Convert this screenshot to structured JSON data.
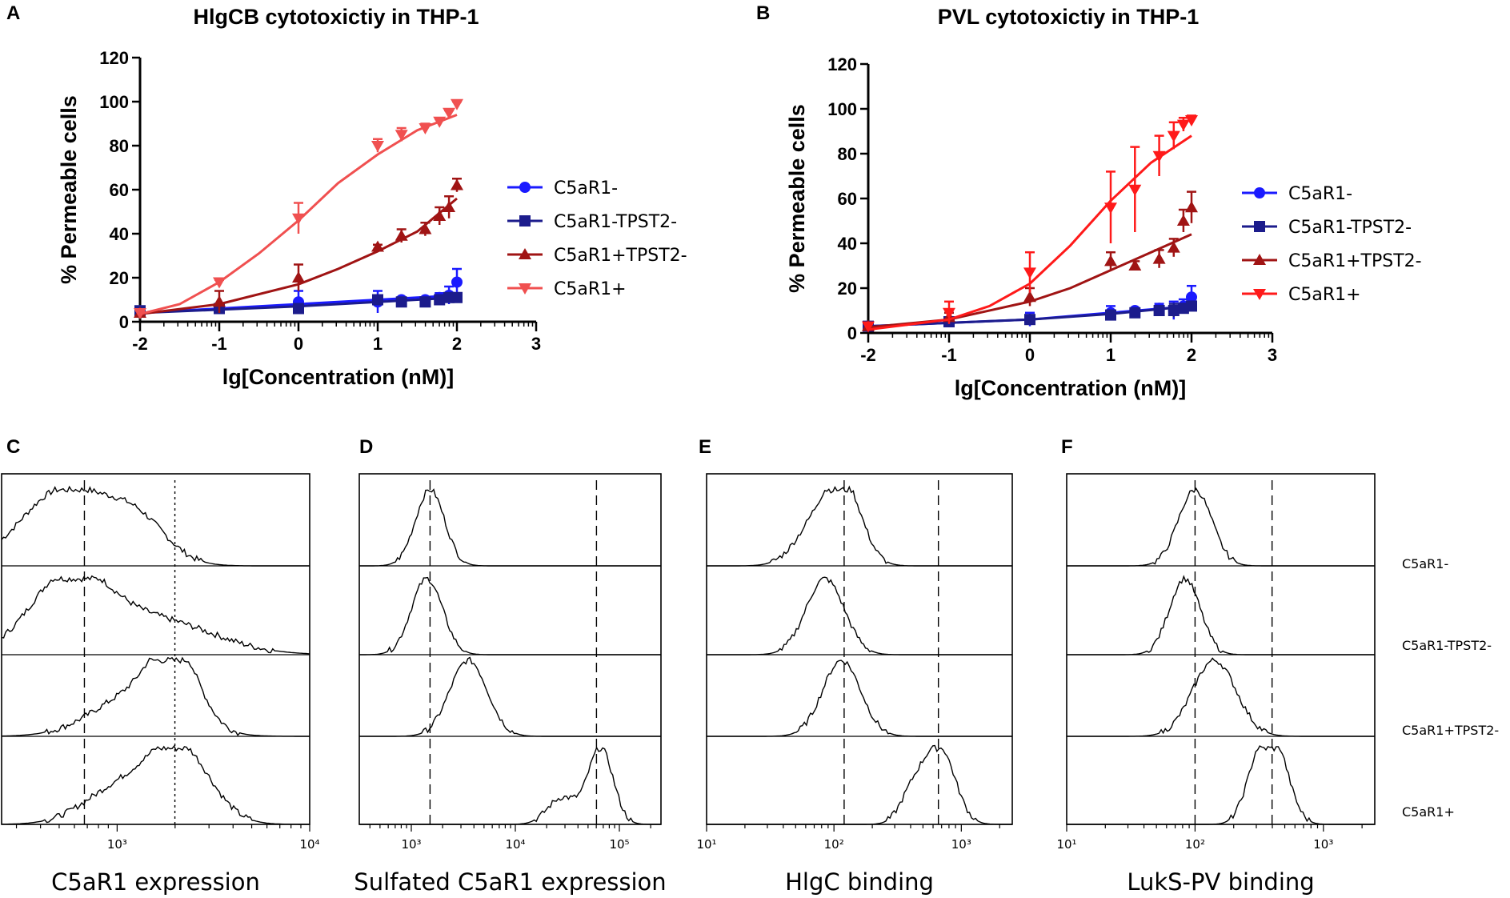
{
  "figure": {
    "panel_labels": [
      "A",
      "B",
      "C",
      "D",
      "E",
      "F"
    ],
    "population_labels": [
      "C5aR1-",
      "C5aR1-TPST2-",
      "C5aR1+TPST2-",
      "C5aR1+"
    ]
  },
  "chart_data": [
    {
      "panel": "A",
      "type": "line",
      "title": "HlgCB cytotoxictiy in THP-1",
      "xlabel": "lg[Concentration (nM)]",
      "ylabel": "% Permeable cells",
      "xlim": [
        -2,
        3
      ],
      "ylim": [
        0,
        120
      ],
      "xticks": [
        "-2",
        "-1",
        "0",
        "1",
        "2",
        "3"
      ],
      "yticks": [
        "0",
        "20",
        "40",
        "60",
        "80",
        "100",
        "120"
      ],
      "legend_position": "right",
      "series": [
        {
          "name": "C5aR1-",
          "color": "#1a1aff",
          "marker": "circle",
          "x": [
            -2,
            -1,
            0,
            1,
            1.3,
            1.6,
            1.78,
            1.9,
            2.0
          ],
          "y": [
            5,
            6,
            9,
            9,
            10,
            10,
            11,
            12,
            18
          ],
          "err": [
            1,
            1,
            5,
            5,
            1,
            1,
            2,
            4,
            6
          ],
          "fit": [
            [
              -2,
              4
            ],
            [
              -1,
              6
            ],
            [
              0,
              8
            ],
            [
              1,
              10
            ],
            [
              2,
              12
            ]
          ]
        },
        {
          "name": "C5aR1-TPST2-",
          "color": "#1c1c8c",
          "marker": "square",
          "x": [
            -2,
            -1,
            0,
            1,
            1.3,
            1.6,
            1.78,
            1.9,
            2.0
          ],
          "y": [
            5,
            6,
            6,
            10,
            9,
            9,
            10,
            11,
            11
          ],
          "err": [
            1,
            1,
            2,
            1,
            1,
            1,
            1,
            1,
            1
          ],
          "fit": [
            [
              -2,
              4
            ],
            [
              -1,
              5.5
            ],
            [
              0,
              7
            ],
            [
              1,
              9
            ],
            [
              2,
              11
            ]
          ]
        },
        {
          "name": "C5aR1+TPST2-",
          "color": "#a01414",
          "marker": "triangle-up",
          "x": [
            -2,
            -1,
            0,
            1,
            1.3,
            1.6,
            1.78,
            1.9,
            2.0
          ],
          "y": [
            4,
            9,
            20,
            34,
            39,
            42,
            48,
            52,
            62
          ],
          "err": [
            1,
            5,
            6,
            1,
            3,
            3,
            4,
            5,
            3
          ],
          "fit": [
            [
              -2,
              3.5
            ],
            [
              -1,
              8
            ],
            [
              0,
              17
            ],
            [
              0.5,
              24
            ],
            [
              1,
              32
            ],
            [
              1.5,
              41
            ],
            [
              2,
              56
            ]
          ]
        },
        {
          "name": "C5aR1+",
          "color": "#f05050",
          "marker": "triangle-down",
          "x": [
            -2,
            -1,
            0,
            1,
            1.3,
            1.6,
            1.78,
            1.9,
            2.0
          ],
          "y": [
            4,
            18,
            47,
            80,
            85,
            88,
            91,
            95,
            99
          ],
          "err": [
            1,
            1,
            7,
            3,
            3,
            2,
            1,
            1,
            1
          ],
          "fit": [
            [
              -2,
              3.5
            ],
            [
              -1.5,
              8
            ],
            [
              -1,
              18
            ],
            [
              -0.5,
              31
            ],
            [
              0,
              46
            ],
            [
              0.5,
              63
            ],
            [
              1,
              76
            ],
            [
              1.5,
              87
            ],
            [
              2,
              94
            ]
          ]
        }
      ]
    },
    {
      "panel": "B",
      "type": "line",
      "title": "PVL cytotoxictiy in THP-1",
      "xlabel": "lg[Concentration (nM)]",
      "ylabel": "% Permeable cells",
      "xlim": [
        -2,
        3
      ],
      "ylim": [
        0,
        120
      ],
      "xticks": [
        "-2",
        "-1",
        "0",
        "1",
        "2",
        "3"
      ],
      "yticks": [
        "0",
        "20",
        "40",
        "60",
        "80",
        "100",
        "120"
      ],
      "legend_position": "right",
      "series": [
        {
          "name": "C5aR1-",
          "color": "#1a1aff",
          "marker": "circle",
          "x": [
            -2,
            -1,
            0,
            1,
            1.3,
            1.6,
            1.78,
            1.9,
            2.0
          ],
          "y": [
            3,
            5,
            6,
            9,
            10,
            11,
            10,
            12,
            16
          ],
          "err": [
            1,
            1,
            3,
            3,
            1,
            2,
            4,
            3,
            5
          ],
          "fit": [
            [
              -2,
              3
            ],
            [
              -1,
              4.5
            ],
            [
              0,
              6
            ],
            [
              1,
              9
            ],
            [
              2,
              12
            ]
          ]
        },
        {
          "name": "C5aR1-TPST2-",
          "color": "#1c1c8c",
          "marker": "square",
          "x": [
            -2,
            -1,
            0,
            1,
            1.3,
            1.6,
            1.78,
            1.9,
            2.0
          ],
          "y": [
            3,
            5,
            6,
            8,
            9,
            10,
            10,
            11,
            12
          ],
          "err": [
            1,
            1,
            2,
            2,
            1,
            2,
            3,
            2,
            2
          ],
          "fit": [
            [
              -2,
              3
            ],
            [
              -1,
              4.5
            ],
            [
              0,
              6
            ],
            [
              1,
              8.5
            ],
            [
              2,
              12
            ]
          ]
        },
        {
          "name": "C5aR1+TPST2-",
          "color": "#a01414",
          "marker": "triangle-up",
          "x": [
            -2,
            -1,
            0,
            1,
            1.3,
            1.6,
            1.78,
            1.9,
            2.0
          ],
          "y": [
            3,
            7,
            16,
            32,
            30,
            33,
            38,
            50,
            56
          ],
          "err": [
            1,
            2,
            4,
            4,
            2,
            4,
            4,
            5,
            7
          ],
          "fit": [
            [
              -2,
              2.5
            ],
            [
              -1,
              6
            ],
            [
              0,
              14
            ],
            [
              0.5,
              20
            ],
            [
              1,
              28
            ],
            [
              1.5,
              36
            ],
            [
              2,
              44
            ]
          ]
        },
        {
          "name": "C5aR1+",
          "color": "#ff1a1a",
          "marker": "triangle-down",
          "x": [
            -2,
            -1,
            0,
            1,
            1.3,
            1.6,
            1.78,
            1.9,
            2.0
          ],
          "y": [
            3,
            9,
            27,
            56,
            64,
            79,
            88,
            93,
            95
          ],
          "err": [
            1,
            5,
            9,
            16,
            19,
            9,
            6,
            3,
            2
          ],
          "fit": [
            [
              -2,
              1.5
            ],
            [
              -1,
              6
            ],
            [
              -0.5,
              12
            ],
            [
              0,
              22
            ],
            [
              0.5,
              39
            ],
            [
              1,
              59
            ],
            [
              1.5,
              76
            ],
            [
              2,
              88
            ]
          ]
        }
      ]
    },
    {
      "panel": "C",
      "type": "histogram-overlay",
      "xlabel": "C5aR1 expression",
      "x_scale": "log",
      "xlim_log10": [
        2.4,
        4.0
      ],
      "tick_labels": [
        {
          "value": 3,
          "label": "10³"
        },
        {
          "value": 4,
          "label": "10⁴"
        }
      ],
      "reference_lines_log10": [
        {
          "value": 2.83,
          "style": "dashed"
        },
        {
          "value": 3.3,
          "style": "dotted"
        }
      ],
      "populations": [
        {
          "name": "C5aR1-",
          "peaks": [
            [
              2.72,
              0.22,
              1.0
            ],
            [
              3.1,
              0.16,
              0.55
            ]
          ]
        },
        {
          "name": "C5aR1-TPST2-",
          "peaks": [
            [
              2.75,
              0.2,
              1.0
            ],
            [
              3.2,
              0.3,
              0.45
            ]
          ]
        },
        {
          "name": "C5aR1+TPST2-",
          "peaks": [
            [
              3.1,
              0.22,
              0.55
            ],
            [
              3.3,
              0.12,
              0.9
            ]
          ]
        },
        {
          "name": "C5aR1+",
          "peaks": [
            [
              3.32,
              0.16,
              1.0
            ],
            [
              3.0,
              0.18,
              0.45
            ]
          ]
        }
      ]
    },
    {
      "panel": "D",
      "type": "histogram-overlay",
      "xlabel": "Sulfated C5aR1 expression",
      "x_scale": "log",
      "xlim_log10": [
        2.5,
        5.4
      ],
      "tick_labels": [
        {
          "value": 3,
          "label": "10³"
        },
        {
          "value": 4,
          "label": "10⁴"
        },
        {
          "value": 5,
          "label": "10⁵"
        }
      ],
      "reference_lines_log10": [
        {
          "value": 3.18,
          "style": "dashed"
        },
        {
          "value": 4.78,
          "style": "dashed"
        }
      ],
      "populations": [
        {
          "name": "C5aR1-",
          "peaks": [
            [
              3.18,
              0.14,
              1.0
            ]
          ]
        },
        {
          "name": "C5aR1-TPST2-",
          "peaks": [
            [
              3.15,
              0.15,
              1.0
            ]
          ]
        },
        {
          "name": "C5aR1+TPST2-",
          "peaks": [
            [
              3.55,
              0.18,
              1.0
            ]
          ]
        },
        {
          "name": "C5aR1+",
          "peaks": [
            [
              4.82,
              0.12,
              1.0
            ],
            [
              4.45,
              0.14,
              0.35
            ]
          ]
        }
      ]
    },
    {
      "panel": "E",
      "type": "histogram-overlay",
      "xlabel": "HlgC binding",
      "x_scale": "log",
      "xlim_log10": [
        1.0,
        3.4
      ],
      "tick_labels": [
        {
          "value": 1,
          "label": "10¹"
        },
        {
          "value": 2,
          "label": "10²"
        },
        {
          "value": 3,
          "label": "10³"
        }
      ],
      "reference_lines_log10": [
        {
          "value": 2.08,
          "style": "dashed"
        },
        {
          "value": 2.82,
          "style": "dashed"
        }
      ],
      "populations": [
        {
          "name": "C5aR1-",
          "peaks": [
            [
              2.08,
              0.14,
              1.0
            ],
            [
              1.85,
              0.16,
              0.5
            ]
          ]
        },
        {
          "name": "C5aR1-TPST2-",
          "peaks": [
            [
              1.93,
              0.15,
              1.0
            ]
          ]
        },
        {
          "name": "C5aR1+TPST2-",
          "peaks": [
            [
              2.06,
              0.15,
              1.0
            ]
          ]
        },
        {
          "name": "C5aR1+",
          "peaks": [
            [
              2.83,
              0.12,
              1.0
            ],
            [
              2.62,
              0.1,
              0.4
            ]
          ]
        }
      ]
    },
    {
      "panel": "F",
      "type": "histogram-overlay",
      "xlabel": "LukS-PV binding",
      "x_scale": "log",
      "xlim_log10": [
        1.0,
        3.4
      ],
      "tick_labels": [
        {
          "value": 1,
          "label": "10¹"
        },
        {
          "value": 2,
          "label": "10²"
        },
        {
          "value": 3,
          "label": "10³"
        }
      ],
      "reference_lines_log10": [
        {
          "value": 2.0,
          "style": "dashed"
        },
        {
          "value": 2.6,
          "style": "dashed"
        }
      ],
      "populations": [
        {
          "name": "C5aR1-",
          "peaks": [
            [
              2.0,
              0.13,
              1.0
            ]
          ]
        },
        {
          "name": "C5aR1-TPST2-",
          "peaks": [
            [
              1.92,
              0.12,
              1.0
            ]
          ]
        },
        {
          "name": "C5aR1+TPST2-",
          "peaks": [
            [
              2.15,
              0.17,
              1.0
            ]
          ]
        },
        {
          "name": "C5aR1+",
          "peaks": [
            [
              2.62,
              0.11,
              1.0
            ],
            [
              2.48,
              0.1,
              0.55
            ]
          ]
        }
      ]
    }
  ]
}
